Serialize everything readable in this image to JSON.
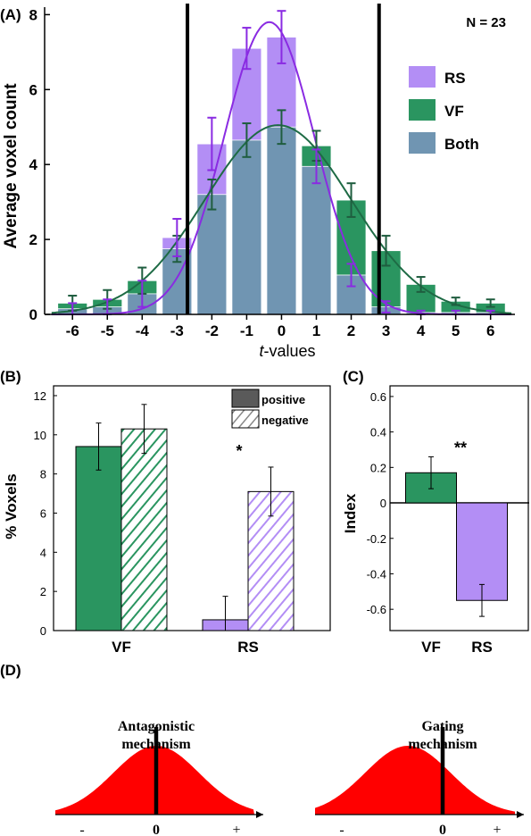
{
  "colors": {
    "rs": "#b38ef5",
    "vf": "#2a9560",
    "both": "#7095b2",
    "rs_line": "#8a2be2",
    "vf_line": "#1e6b45",
    "err_rs": "#8a2be2",
    "err_vf": "#1f5d3f",
    "bell": "#ff0000"
  },
  "chart_data": [
    {
      "panel": "(A)",
      "type": "bar",
      "annotation": "N = 23",
      "xlabel_italic": "t",
      "xlabel_rest": "-values",
      "ylabel": "Average voxel count",
      "x": [
        -6,
        -5,
        -4,
        -3,
        -2,
        -1,
        0,
        1,
        2,
        3,
        4,
        5,
        6
      ],
      "ylim": [
        0,
        8.2
      ],
      "yticks": [
        0,
        2,
        4,
        6,
        8
      ],
      "series": [
        {
          "name": "RS",
          "values": [
            0.15,
            0.2,
            0.55,
            2.05,
            4.55,
            7.1,
            7.4,
            3.95,
            1.05,
            0.2,
            0.05,
            0.05,
            0.05
          ],
          "errors": [
            0.15,
            0.2,
            0.35,
            0.5,
            0.7,
            0.55,
            0.7,
            0.45,
            0.3,
            0.15,
            0.05,
            0.05,
            0.05
          ]
        },
        {
          "name": "VF",
          "values": [
            0.3,
            0.4,
            0.9,
            1.75,
            3.2,
            4.65,
            5.0,
            4.5,
            3.05,
            1.7,
            0.8,
            0.35,
            0.3
          ],
          "errors": [
            0.2,
            0.25,
            0.35,
            0.35,
            0.4,
            0.45,
            0.45,
            0.4,
            0.45,
            0.4,
            0.2,
            0.1,
            0.1
          ]
        },
        {
          "name": "Both",
          "values": [
            0.15,
            0.2,
            0.55,
            1.75,
            3.2,
            4.65,
            5.0,
            3.95,
            1.05,
            0.2,
            0.05,
            0.05,
            0.05
          ]
        }
      ],
      "curves": [
        {
          "series": "RS",
          "peak": 7.8,
          "mean": -0.35,
          "sd": 1.3
        },
        {
          "series": "VF",
          "peak": 5.05,
          "mean": -0.1,
          "sd": 2.1
        }
      ],
      "vertical_lines": [
        -2.7,
        2.8
      ]
    },
    {
      "panel": "(B)",
      "type": "bar",
      "ylabel": "% Voxels",
      "categories": [
        "VF",
        "RS"
      ],
      "ylim": [
        0,
        12.5
      ],
      "yticks": [
        0,
        2,
        4,
        6,
        8,
        10,
        12
      ],
      "series": [
        {
          "name": "positive",
          "values": [
            9.4,
            0.55
          ],
          "errors": [
            1.2,
            1.2
          ]
        },
        {
          "name": "negative",
          "values": [
            10.3,
            7.1
          ],
          "errors": [
            1.25,
            1.25
          ]
        }
      ],
      "significance": {
        "category": "RS",
        "label": "*"
      }
    },
    {
      "panel": "(C)",
      "type": "bar",
      "ylabel": "Index",
      "categories": [
        "VF",
        "RS"
      ],
      "values": [
        0.17,
        -0.55
      ],
      "errors": [
        0.09,
        0.09
      ],
      "ylim": [
        -0.72,
        0.66
      ],
      "yticks": [
        -0.6,
        -0.4,
        -0.2,
        0,
        0.2,
        0.4,
        0.6
      ],
      "ytick_labels": [
        "-0.6",
        "-0.4",
        "-0.2",
        "0",
        "0.2",
        "0.4",
        "0.6"
      ],
      "significance": {
        "label": "**"
      }
    },
    {
      "panel": "(D)",
      "type": "area",
      "items": [
        {
          "title_line1": "Antagonistic",
          "title_line2": "mechanism",
          "marker": 0.0,
          "center": 0.0
        },
        {
          "title_line1": "Gating",
          "title_line2": "mechanism",
          "marker": 0.0,
          "center": -0.3
        }
      ],
      "x_labels": [
        "-",
        "0",
        "+"
      ]
    }
  ]
}
